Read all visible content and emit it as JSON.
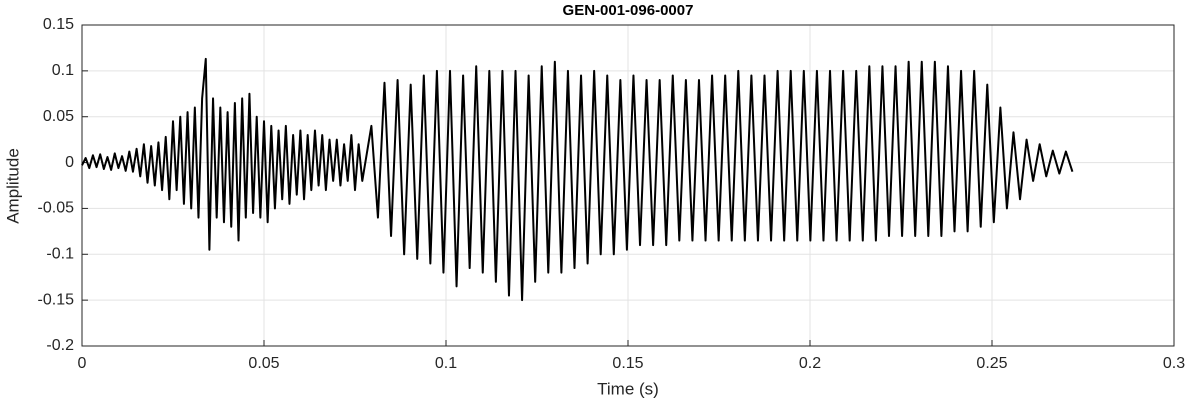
{
  "chart_data": {
    "type": "line",
    "title": "GEN-001-096-0007",
    "xlabel": "Time (s)",
    "ylabel": "Amplitude",
    "color": "#000000",
    "grid": true,
    "xlim": [
      0,
      0.3
    ],
    "xticks": [
      0,
      0.05,
      0.1,
      0.15,
      0.2,
      0.25,
      0.3
    ],
    "ylim": [
      -0.2,
      0.15
    ],
    "yticks": [
      -0.2,
      -0.15,
      -0.1,
      -0.05,
      0,
      0.05,
      0.1,
      0.15
    ],
    "x": [
      0,
      0.001,
      0.002,
      0.003,
      0.004,
      0.005,
      0.006,
      0.007,
      0.008,
      0.009,
      0.01,
      0.011,
      0.012,
      0.013,
      0.014,
      0.015,
      0.016,
      0.017,
      0.018,
      0.019,
      0.02,
      0.021,
      0.022,
      0.023,
      0.024,
      0.025,
      0.026,
      0.027,
      0.028,
      0.029,
      0.03,
      0.031,
      0.032,
      0.033,
      0.034,
      0.035,
      0.036,
      0.037,
      0.038,
      0.039,
      0.04,
      0.041,
      0.042,
      0.043,
      0.044,
      0.045,
      0.046,
      0.047,
      0.048,
      0.049,
      0.05,
      0.051,
      0.052,
      0.053,
      0.054,
      0.055,
      0.056,
      0.057,
      0.058,
      0.059,
      0.06,
      0.061,
      0.062,
      0.063,
      0.064,
      0.065,
      0.066,
      0.067,
      0.068,
      0.069,
      0.07,
      0.071,
      0.072,
      0.073,
      0.074,
      0.075,
      0.076,
      0.077,
      0.0795,
      0.0813,
      0.0831,
      0.0849,
      0.0867,
      0.0885,
      0.0903,
      0.0921,
      0.0939,
      0.0957,
      0.0975,
      0.0993,
      0.1011,
      0.1029,
      0.1047,
      0.1065,
      0.1083,
      0.1101,
      0.1119,
      0.1137,
      0.1155,
      0.1173,
      0.1191,
      0.1209,
      0.1227,
      0.1245,
      0.1263,
      0.1281,
      0.1299,
      0.1317,
      0.1335,
      0.1353,
      0.1371,
      0.1389,
      0.1407,
      0.1425,
      0.1443,
      0.1461,
      0.1479,
      0.1497,
      0.1515,
      0.1533,
      0.1551,
      0.1569,
      0.1587,
      0.1605,
      0.1623,
      0.1641,
      0.1659,
      0.1677,
      0.1695,
      0.1713,
      0.1731,
      0.1749,
      0.1767,
      0.1785,
      0.1803,
      0.1821,
      0.1839,
      0.1857,
      0.1875,
      0.1893,
      0.1911,
      0.1929,
      0.1947,
      0.1965,
      0.1983,
      0.2001,
      0.2019,
      0.2037,
      0.2055,
      0.2073,
      0.2091,
      0.2109,
      0.2127,
      0.2145,
      0.2163,
      0.2181,
      0.2199,
      0.2217,
      0.2235,
      0.2253,
      0.2271,
      0.2289,
      0.2307,
      0.2325,
      0.2343,
      0.2361,
      0.2379,
      0.2397,
      0.2415,
      0.2433,
      0.2451,
      0.2469,
      0.2487,
      0.2505,
      0.2523,
      0.2541,
      0.2559,
      0.2577,
      0.2595,
      0.2613,
      0.2631,
      0.2649,
      0.2667,
      0.2685,
      0.2703,
      0.2721
    ],
    "values": [
      -0.003,
      0.005,
      -0.006,
      0.008,
      -0.005,
      0.009,
      -0.007,
      0.006,
      -0.008,
      0.01,
      -0.006,
      0.007,
      -0.009,
      0.012,
      -0.01,
      0.015,
      -0.015,
      0.02,
      -0.022,
      0.018,
      -0.025,
      0.022,
      -0.03,
      0.028,
      -0.04,
      0.045,
      -0.03,
      0.05,
      -0.045,
      0.055,
      -0.05,
      0.06,
      -0.06,
      0.07,
      0.113,
      -0.095,
      0.07,
      -0.06,
      0.06,
      -0.065,
      0.055,
      -0.07,
      0.065,
      -0.085,
      0.07,
      -0.06,
      0.075,
      -0.055,
      0.05,
      -0.06,
      0.045,
      -0.065,
      0.04,
      -0.05,
      0.035,
      -0.04,
      0.04,
      -0.045,
      0.03,
      -0.035,
      0.035,
      -0.04,
      0.03,
      -0.03,
      0.035,
      -0.025,
      0.03,
      -0.03,
      0.025,
      -0.02,
      0.025,
      -0.025,
      0.02,
      -0.02,
      0.03,
      -0.03,
      0.02,
      -0.02,
      0.04,
      -0.06,
      0.087,
      -0.08,
      0.09,
      -0.1,
      0.085,
      -0.105,
      0.095,
      -0.11,
      0.1,
      -0.12,
      0.1,
      -0.135,
      0.095,
      -0.115,
      0.105,
      -0.12,
      0.1,
      -0.13,
      0.1,
      -0.145,
      0.1,
      -0.15,
      0.095,
      -0.13,
      0.105,
      -0.12,
      0.11,
      -0.12,
      0.1,
      -0.115,
      0.095,
      -0.11,
      0.1,
      -0.1,
      0.095,
      -0.1,
      0.09,
      -0.095,
      0.095,
      -0.09,
      0.09,
      -0.09,
      0.09,
      -0.09,
      0.095,
      -0.085,
      0.09,
      -0.085,
      0.09,
      -0.085,
      0.095,
      -0.085,
      0.095,
      -0.085,
      0.1,
      -0.085,
      0.095,
      -0.085,
      0.095,
      -0.085,
      0.1,
      -0.085,
      0.1,
      -0.085,
      0.1,
      -0.085,
      0.1,
      -0.085,
      0.1,
      -0.085,
      0.1,
      -0.085,
      0.1,
      -0.085,
      0.105,
      -0.085,
      0.105,
      -0.08,
      0.105,
      -0.08,
      0.11,
      -0.08,
      0.11,
      -0.08,
      0.11,
      -0.08,
      0.105,
      -0.075,
      0.1,
      -0.075,
      0.1,
      -0.07,
      0.085,
      -0.065,
      0.06,
      -0.05,
      0.033,
      -0.04,
      0.025,
      -0.02,
      0.02,
      -0.015,
      0.013,
      -0.012,
      0.012,
      -0.01
    ]
  }
}
